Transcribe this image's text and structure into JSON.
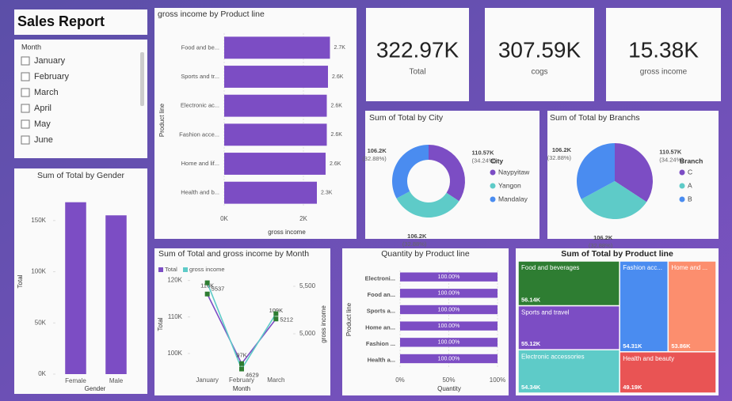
{
  "header": {
    "title": "Sales Report"
  },
  "slicer": {
    "title": "Month",
    "items": [
      "January",
      "February",
      "March",
      "April",
      "May",
      "June"
    ]
  },
  "cards": [
    {
      "value": "322.97K",
      "label": "Total"
    },
    {
      "value": "307.59K",
      "label": "cogs"
    },
    {
      "value": "15.38K",
      "label": "gross income"
    }
  ],
  "chart_data": [
    {
      "type": "bar",
      "orientation": "horizontal",
      "title": "gross income by Product line",
      "xlabel": "gross income",
      "ylabel": "Product line",
      "categories": [
        "Food and be...",
        "Sports and tr...",
        "Electronic ac...",
        "Fashion acce...",
        "Home and lif...",
        "Health and b..."
      ],
      "values": [
        2670,
        2620,
        2590,
        2590,
        2560,
        2340
      ],
      "value_labels": [
        "2.7K",
        "2.6K",
        "2.6K",
        "2.6K",
        "2.6K",
        "2.3K"
      ],
      "color": "#7c4dc4",
      "xlim": [
        0,
        2800
      ],
      "xticks": [
        {
          "value": 0,
          "label": "0K"
        },
        {
          "value": 2000,
          "label": "2K"
        }
      ],
      "grid": true
    },
    {
      "type": "pie",
      "donut": true,
      "title": "Sum of Total by City",
      "legend_title": "City",
      "categories": [
        "Naypyitaw",
        "Yangon",
        "Mandalay"
      ],
      "values": [
        110570,
        106200,
        106200
      ],
      "value_labels": [
        "110.57K",
        "106.2K",
        "106.2K"
      ],
      "percents": [
        34.24,
        32.88,
        32.88
      ],
      "percent_labels": [
        "(34.24%)",
        "(32.88%)",
        "(32.88%)"
      ],
      "colors": [
        "#7c4dc4",
        "#5ecbc8",
        "#4a8cf0"
      ]
    },
    {
      "type": "pie",
      "donut": false,
      "title": "Sum of Total by Branchs",
      "legend_title": "Branch",
      "categories": [
        "C",
        "A",
        "B"
      ],
      "values": [
        110570,
        106200,
        106200
      ],
      "value_labels": [
        "110.57K",
        "106.2K",
        "106.2K"
      ],
      "percents": [
        34.24,
        32.88,
        32.88
      ],
      "percent_labels": [
        "(34.24%)",
        "(32.88%)",
        "(32.88%)"
      ],
      "colors": [
        "#7c4dc4",
        "#5ecbc8",
        "#4a8cf0"
      ]
    },
    {
      "type": "bar",
      "orientation": "vertical",
      "title": "Sum of Total by Gender",
      "xlabel": "Gender",
      "ylabel": "Total",
      "categories": [
        "Female",
        "Male"
      ],
      "values": [
        167880,
        155080
      ],
      "color": "#7c4dc4",
      "ylim": [
        0,
        180000
      ],
      "yticks": [
        {
          "value": 0,
          "label": "0K"
        },
        {
          "value": 50000,
          "label": "50K"
        },
        {
          "value": 100000,
          "label": "100K"
        },
        {
          "value": 150000,
          "label": "150K"
        }
      ]
    },
    {
      "type": "line",
      "title": "Sum of Total and gross income by Month",
      "xlabel": "Month",
      "ylabel": "Total",
      "y2label": "gross income",
      "categories": [
        "January",
        "February",
        "March"
      ],
      "marker_color": "#2e7d32",
      "series": [
        {
          "name": "Total",
          "color": "#7c4dc4",
          "values": [
            116290,
            97220,
            109460
          ],
          "value_labels": [
            "116K",
            "97K",
            "109K"
          ]
        },
        {
          "name": "gross income",
          "color": "#5ecbc8",
          "axis": "y2",
          "values": [
            5537,
            4629,
            5212
          ]
        }
      ],
      "ylim": [
        95000,
        121000
      ],
      "yticks": [
        {
          "value": 100000,
          "label": "100K"
        },
        {
          "value": 110000,
          "label": "110K"
        },
        {
          "value": 120000,
          "label": "120K"
        }
      ],
      "y2lim": [
        4600,
        5600
      ],
      "y2ticks": [
        {
          "value": 5000,
          "label": "5,000"
        },
        {
          "value": 5500,
          "label": "5,500"
        }
      ]
    },
    {
      "type": "bar",
      "orientation": "horizontal",
      "title": "Quantity by Product line",
      "xlabel": "Quantity",
      "ylabel": "Product line",
      "categories": [
        "Electroni...",
        "Food an...",
        "Sports a...",
        "Home an...",
        "Fashion ...",
        "Health a..."
      ],
      "values": [
        100,
        100,
        100,
        100,
        100,
        100
      ],
      "value_labels": [
        "100.00%",
        "100.00%",
        "100.00%",
        "100.00%",
        "100.00%",
        "100.00%"
      ],
      "color": "#7c4dc4",
      "xlim": [
        0,
        100
      ],
      "xticks": [
        {
          "value": 0,
          "label": "0%"
        },
        {
          "value": 50,
          "label": "50%"
        },
        {
          "value": 100,
          "label": "100%"
        }
      ],
      "grid": true
    },
    {
      "type": "treemap",
      "title": "Sum of Total by Product line",
      "categories": [
        "Food and beverages",
        "Sports and travel",
        "Electronic accessories",
        "Fashion acc...",
        "Home and ...",
        "Health and beauty"
      ],
      "values": [
        56140,
        55120,
        54340,
        54310,
        53860,
        49190
      ],
      "value_labels": [
        "56.14K",
        "55.12K",
        "54.34K",
        "54.31K",
        "53.86K",
        "49.19K"
      ],
      "colors": [
        "#2e7d32",
        "#7c4dc4",
        "#5ecbc8",
        "#4a8cf0",
        "#fc8e6e",
        "#e95454"
      ]
    }
  ]
}
